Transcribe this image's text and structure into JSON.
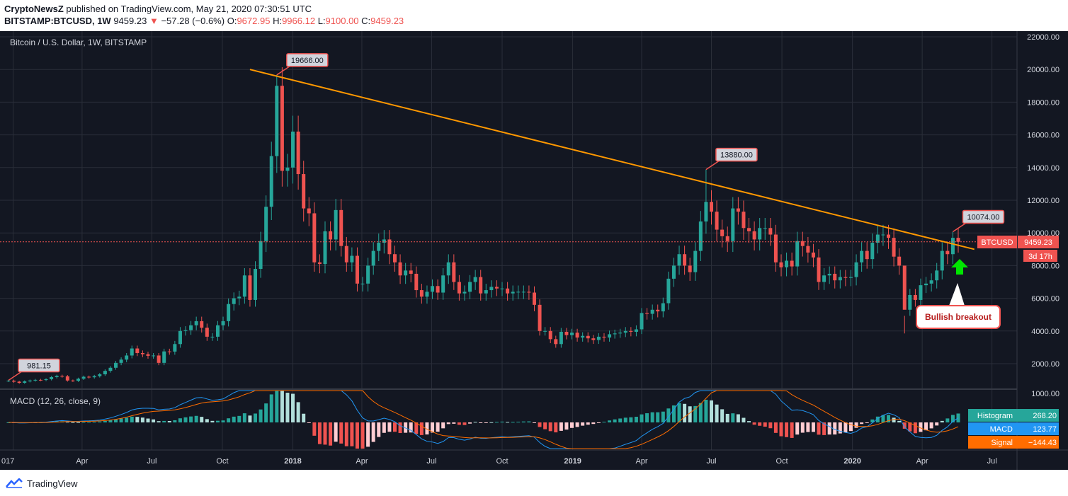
{
  "header": {
    "publisher": "CryptoNewsZ",
    "published_text": "published on TradingView.com, May 21, 2020 07:30:51 UTC",
    "symbol": "BITSTAMP:BTCUSD, 1W",
    "price": "9459.23",
    "change": "−57.28 (−0.6%)",
    "o_label": "O:",
    "o_value": "9672.95",
    "h_label": "H:",
    "h_value": "9966.12",
    "l_label": "L:",
    "l_value": "9100.00",
    "c_label": "C:",
    "c_value": "9459.23"
  },
  "footer": {
    "brand": "TradingView"
  },
  "colors": {
    "background": "#131722",
    "up": "#26a69a",
    "down": "#ef5350",
    "trendline": "#ff9800",
    "macd_line": "#2196f3",
    "signal_line": "#ff6d00",
    "arrow": "#00e600",
    "price_label": "#ef5350"
  },
  "chart_data": [
    {
      "type": "candlestick",
      "title": "Bitcoin / U.S. Dollar, 1W, BITSTAMP",
      "ylim": [
        0,
        22000
      ],
      "y_ticks": [
        "2000.00",
        "4000.00",
        "6000.00",
        "8000.00",
        "10000.00",
        "12000.00",
        "14000.00",
        "16000.00",
        "18000.00",
        "20000.00",
        "22000.00"
      ],
      "x_tick_labels": [
        "017",
        "Apr",
        "Jul",
        "Oct",
        "2018",
        "Apr",
        "Jul",
        "Oct",
        "2019",
        "Apr",
        "Jul",
        "Oct",
        "2020",
        "Apr",
        "Jul"
      ],
      "x_ticks": [
        "2017-01",
        "2017-04",
        "2017-07",
        "2017-10",
        "2018-01",
        "2018-04",
        "2018-07",
        "2018-10",
        "2019-01",
        "2019-04",
        "2019-07",
        "2019-10",
        "2020-01",
        "2020-04",
        "2020-07"
      ],
      "weekly_close": [
        [
          "2016-12-26",
          960
        ],
        [
          "2017-01-02",
          900
        ],
        [
          "2017-01-09",
          830
        ],
        [
          "2017-01-16",
          920
        ],
        [
          "2017-01-23",
          970
        ],
        [
          "2017-01-30",
          1010
        ],
        [
          "2017-02-06",
          1000
        ],
        [
          "2017-02-13",
          1050
        ],
        [
          "2017-02-20",
          1180
        ],
        [
          "2017-02-27",
          1250
        ],
        [
          "2017-03-06",
          1230
        ],
        [
          "2017-03-13",
          970
        ],
        [
          "2017-03-20",
          950
        ],
        [
          "2017-03-27",
          1080
        ],
        [
          "2017-04-03",
          1200
        ],
        [
          "2017-04-10",
          1170
        ],
        [
          "2017-04-17",
          1240
        ],
        [
          "2017-04-24",
          1350
        ],
        [
          "2017-05-01",
          1560
        ],
        [
          "2017-05-08",
          1750
        ],
        [
          "2017-05-15",
          2050
        ],
        [
          "2017-05-22",
          2250
        ],
        [
          "2017-05-29",
          2500
        ],
        [
          "2017-06-05",
          2930
        ],
        [
          "2017-06-12",
          2650
        ],
        [
          "2017-06-19",
          2580
        ],
        [
          "2017-06-26",
          2480
        ],
        [
          "2017-07-03",
          2500
        ],
        [
          "2017-07-10",
          2050
        ],
        [
          "2017-07-17",
          2750
        ],
        [
          "2017-07-24",
          2740
        ],
        [
          "2017-07-31",
          3200
        ],
        [
          "2017-08-07",
          4000
        ],
        [
          "2017-08-14",
          4050
        ],
        [
          "2017-08-21",
          4350
        ],
        [
          "2017-08-28",
          4600
        ],
        [
          "2017-09-04",
          4200
        ],
        [
          "2017-09-11",
          3650
        ],
        [
          "2017-09-18",
          3650
        ],
        [
          "2017-09-25",
          4350
        ],
        [
          "2017-10-02",
          4600
        ],
        [
          "2017-10-09",
          5650
        ],
        [
          "2017-10-16",
          6000
        ],
        [
          "2017-10-23",
          6100
        ],
        [
          "2017-10-30",
          7400
        ],
        [
          "2017-11-06",
          5900
        ],
        [
          "2017-11-13",
          7800
        ],
        [
          "2017-11-20",
          9500
        ],
        [
          "2017-11-27",
          11600
        ],
        [
          "2017-12-04",
          14700
        ],
        [
          "2017-12-11",
          19000
        ],
        [
          "2017-12-18",
          13800
        ],
        [
          "2017-12-25",
          14000
        ],
        [
          "2018-01-01",
          16200
        ],
        [
          "2018-01-08",
          13600
        ],
        [
          "2018-01-15",
          11500
        ],
        [
          "2018-01-22",
          11200
        ],
        [
          "2018-01-29",
          8200
        ],
        [
          "2018-02-05",
          8100
        ],
        [
          "2018-02-12",
          10100
        ],
        [
          "2018-02-19",
          9600
        ],
        [
          "2018-02-26",
          11400
        ],
        [
          "2018-03-05",
          9200
        ],
        [
          "2018-03-12",
          8200
        ],
        [
          "2018-03-19",
          8600
        ],
        [
          "2018-03-26",
          6900
        ],
        [
          "2018-04-02",
          6900
        ],
        [
          "2018-04-09",
          8000
        ],
        [
          "2018-04-16",
          8900
        ],
        [
          "2018-04-23",
          9400
        ],
        [
          "2018-04-30",
          9600
        ],
        [
          "2018-05-07",
          8700
        ],
        [
          "2018-05-14",
          8200
        ],
        [
          "2018-05-21",
          7400
        ],
        [
          "2018-05-28",
          7700
        ],
        [
          "2018-06-04",
          7500
        ],
        [
          "2018-06-11",
          6500
        ],
        [
          "2018-06-18",
          6100
        ],
        [
          "2018-06-25",
          6400
        ],
        [
          "2018-07-02",
          6750
        ],
        [
          "2018-07-09",
          6350
        ],
        [
          "2018-07-16",
          7400
        ],
        [
          "2018-07-23",
          8200
        ],
        [
          "2018-07-30",
          7000
        ],
        [
          "2018-08-06",
          6300
        ],
        [
          "2018-08-13",
          6400
        ],
        [
          "2018-08-20",
          7000
        ],
        [
          "2018-08-27",
          7300
        ],
        [
          "2018-09-03",
          6300
        ],
        [
          "2018-09-10",
          6500
        ],
        [
          "2018-09-17",
          6700
        ],
        [
          "2018-09-24",
          6600
        ],
        [
          "2018-10-01",
          6600
        ],
        [
          "2018-10-08",
          6300
        ],
        [
          "2018-10-15",
          6400
        ],
        [
          "2018-10-22",
          6400
        ],
        [
          "2018-10-29",
          6400
        ],
        [
          "2018-11-05",
          6350
        ],
        [
          "2018-11-12",
          5600
        ],
        [
          "2018-11-19",
          4000
        ],
        [
          "2018-11-26",
          4000
        ],
        [
          "2018-12-03",
          3500
        ],
        [
          "2018-12-10",
          3200
        ],
        [
          "2018-12-17",
          3950
        ],
        [
          "2018-12-24",
          3750
        ],
        [
          "2018-12-31",
          3900
        ],
        [
          "2019-01-07",
          3600
        ],
        [
          "2019-01-14",
          3700
        ],
        [
          "2019-01-21",
          3550
        ],
        [
          "2019-01-28",
          3450
        ],
        [
          "2019-02-04",
          3650
        ],
        [
          "2019-02-11",
          3600
        ],
        [
          "2019-02-18",
          3800
        ],
        [
          "2019-02-25",
          3850
        ],
        [
          "2019-03-04",
          3900
        ],
        [
          "2019-03-11",
          4000
        ],
        [
          "2019-03-18",
          3950
        ],
        [
          "2019-03-25",
          4100
        ],
        [
          "2019-04-01",
          5100
        ],
        [
          "2019-04-08",
          5050
        ],
        [
          "2019-04-15",
          5300
        ],
        [
          "2019-04-22",
          5200
        ],
        [
          "2019-04-29",
          5700
        ],
        [
          "2019-05-06",
          7200
        ],
        [
          "2019-05-13",
          8000
        ],
        [
          "2019-05-20",
          8700
        ],
        [
          "2019-05-27",
          8000
        ],
        [
          "2019-06-03",
          7600
        ],
        [
          "2019-06-10",
          8900
        ],
        [
          "2019-06-17",
          10700
        ],
        [
          "2019-06-24",
          11900
        ],
        [
          "2019-07-01",
          11300
        ],
        [
          "2019-07-08",
          10200
        ],
        [
          "2019-07-15",
          9800
        ],
        [
          "2019-07-22",
          9500
        ],
        [
          "2019-07-29",
          11500
        ],
        [
          "2019-08-05",
          11300
        ],
        [
          "2019-08-12",
          10300
        ],
        [
          "2019-08-19",
          10100
        ],
        [
          "2019-08-26",
          9600
        ],
        [
          "2019-09-02",
          10300
        ],
        [
          "2019-09-09",
          10300
        ],
        [
          "2019-09-16",
          9900
        ],
        [
          "2019-09-23",
          8200
        ],
        [
          "2019-09-30",
          7900
        ],
        [
          "2019-10-07",
          8300
        ],
        [
          "2019-10-14",
          7950
        ],
        [
          "2019-10-21",
          9500
        ],
        [
          "2019-10-28",
          9200
        ],
        [
          "2019-11-04",
          8800
        ],
        [
          "2019-11-11",
          8500
        ],
        [
          "2019-11-18",
          7000
        ],
        [
          "2019-11-25",
          7400
        ],
        [
          "2019-12-02",
          7500
        ],
        [
          "2019-12-09",
          7100
        ],
        [
          "2019-12-16",
          7300
        ],
        [
          "2019-12-23",
          7250
        ],
        [
          "2019-12-30",
          7300
        ],
        [
          "2020-01-06",
          8200
        ],
        [
          "2020-01-13",
          8900
        ],
        [
          "2020-01-20",
          8400
        ],
        [
          "2020-01-27",
          9400
        ],
        [
          "2020-02-03",
          9900
        ],
        [
          "2020-02-10",
          9900
        ],
        [
          "2020-02-17",
          9700
        ],
        [
          "2020-02-24",
          8550
        ],
        [
          "2020-03-02",
          8000
        ],
        [
          "2020-03-09",
          5300
        ],
        [
          "2020-03-16",
          6200
        ],
        [
          "2020-03-23",
          5900
        ],
        [
          "2020-03-30",
          6800
        ],
        [
          "2020-04-06",
          6900
        ],
        [
          "2020-04-13",
          7100
        ],
        [
          "2020-04-20",
          7700
        ],
        [
          "2020-04-27",
          8900
        ],
        [
          "2020-05-04",
          8700
        ],
        [
          "2020-05-11",
          9700
        ],
        [
          "2020-05-18",
          9459.23
        ]
      ],
      "labels": [
        {
          "date": "2016-12-26",
          "value": 981.15,
          "text": "981.15"
        },
        {
          "date": "2017-12-11",
          "value": 19666.0,
          "text": "19666.00"
        },
        {
          "date": "2019-06-24",
          "value": 13880.0,
          "text": "13880.00"
        },
        {
          "date": "2020-05-11",
          "value": 10074.0,
          "text": "10074.00"
        }
      ],
      "trendline": [
        [
          "2017-11-06",
          20000
        ],
        [
          "2020-06-08",
          9000
        ]
      ],
      "last_price": {
        "symbol": "BTCUSD",
        "value": "9459.23",
        "countdown": "3d 17h"
      },
      "annotation": "Bullish breakout"
    },
    {
      "type": "macd",
      "title": "MACD (12, 26, close, 9)",
      "y_ticks": [
        "1000.00"
      ],
      "legend": [
        {
          "name": "Histogram",
          "value": "268.20"
        },
        {
          "name": "MACD",
          "value": "123.77"
        },
        {
          "name": "Signal",
          "value": "−144.43"
        }
      ]
    }
  ]
}
